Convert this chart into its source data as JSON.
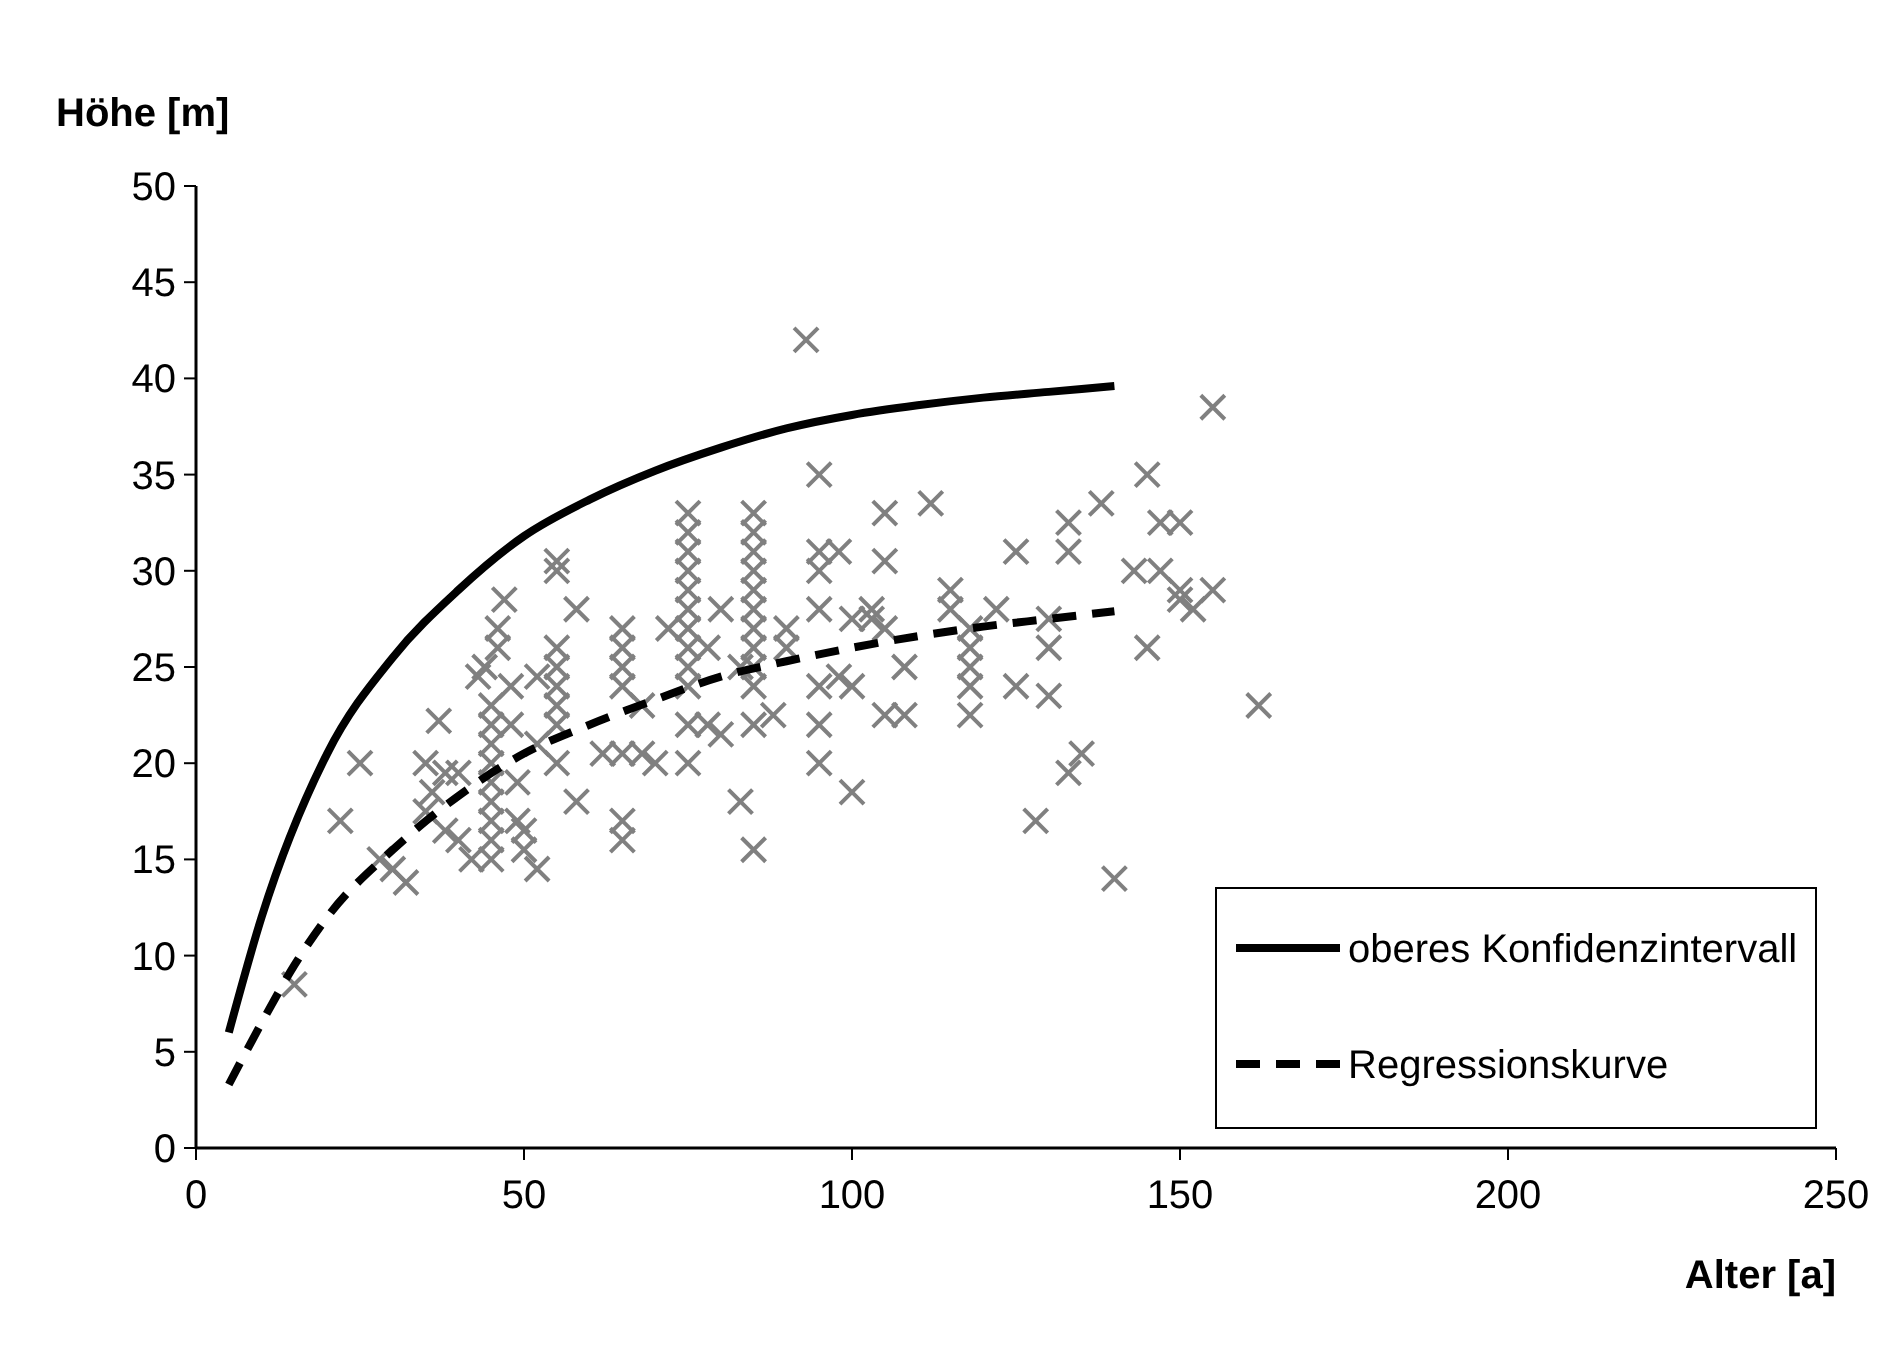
{
  "chart_data": {
    "type": "scatter",
    "xlabel": "Alter [a]",
    "ylabel": "Höhe [m]",
    "xlim": [
      0,
      250
    ],
    "xticks": [
      0,
      50,
      100,
      150,
      200,
      250
    ],
    "ylim": [
      0,
      50
    ],
    "yticks": [
      0,
      5,
      10,
      15,
      20,
      25,
      30,
      35,
      40,
      45,
      50
    ],
    "grid": false,
    "legend": "bottom right",
    "series": [
      {
        "color": "#808080",
        "marker": "cross",
        "x": [
          15,
          22,
          25,
          28,
          30,
          32,
          35,
          35,
          36,
          37,
          38,
          38,
          40,
          40,
          42,
          43,
          44,
          45,
          45,
          45,
          45,
          45,
          45,
          45,
          45,
          45,
          46,
          46,
          47,
          48,
          48,
          49,
          49,
          50,
          50,
          52,
          52,
          52,
          55,
          55,
          55,
          55,
          55,
          55,
          55,
          55,
          58,
          58,
          62,
          65,
          65,
          65,
          65,
          65,
          65,
          65,
          68,
          68,
          70,
          72,
          75,
          75,
          75,
          75,
          75,
          75,
          75,
          75,
          75,
          75,
          75,
          75,
          78,
          78,
          80,
          80,
          83,
          83,
          85,
          85,
          85,
          85,
          85,
          85,
          85,
          85,
          85,
          85,
          85,
          85,
          88,
          90,
          90,
          93,
          95,
          95,
          95,
          95,
          95,
          95,
          95,
          98,
          98,
          100,
          100,
          100,
          103,
          103,
          105,
          105,
          105,
          105,
          108,
          108,
          112,
          115,
          115,
          118,
          118,
          118,
          118,
          118,
          122,
          125,
          125,
          128,
          130,
          130,
          130,
          133,
          133,
          133,
          135,
          138,
          140,
          143,
          145,
          145,
          147,
          147,
          150,
          150,
          150,
          152,
          155,
          155,
          162
        ],
        "values": [
          8.5,
          17,
          20,
          15,
          14.5,
          13.8,
          20,
          17.5,
          18.5,
          22.2,
          19.5,
          16.5,
          19.5,
          16,
          15,
          24.5,
          25,
          15,
          16,
          17,
          18,
          19,
          20,
          21,
          22,
          23,
          26,
          27,
          28.5,
          24,
          22,
          19,
          17,
          15.5,
          16.5,
          14.5,
          24.5,
          21,
          20,
          22,
          24,
          25,
          26,
          30,
          30.5,
          23,
          28,
          18,
          20.5,
          24,
          25,
          26,
          27,
          16,
          17,
          20.5,
          23,
          20.5,
          20,
          27,
          22,
          24,
          25,
          26,
          27,
          28,
          29,
          30,
          31,
          32,
          33,
          20,
          26,
          22,
          21.5,
          28,
          18,
          25,
          24,
          25,
          26,
          27,
          28,
          29,
          30,
          31,
          32,
          33,
          15.5,
          22,
          22.5,
          27,
          26,
          42,
          35,
          31,
          30,
          28,
          20,
          22,
          24,
          31,
          24.5,
          18.5,
          27.5,
          24,
          28,
          27.5,
          33,
          30.5,
          27,
          22.5,
          25,
          22.5,
          33.5,
          29,
          28,
          22.5,
          24,
          25,
          26,
          27,
          28,
          31,
          24,
          17,
          27.5,
          26,
          23.5,
          32.5,
          31,
          19.5,
          20.5,
          33.5,
          14,
          30,
          35,
          26,
          32.5,
          30,
          32.5,
          29,
          28.5,
          28,
          38.5,
          29,
          23
        ]
      },
      {
        "type": "line",
        "name": "oberes Konfidenzintervall",
        "color": "#000000",
        "line_style": "solid",
        "x": [
          5,
          10,
          20,
          30,
          40,
          50,
          60,
          70,
          80,
          90,
          100,
          110,
          120,
          130,
          140
        ],
        "values": [
          6,
          12,
          20.5,
          25.5,
          29,
          31.8,
          33.7,
          35.2,
          36.4,
          37.4,
          38.1,
          38.6,
          39,
          39.3,
          39.6
        ]
      },
      {
        "type": "line",
        "name": "Regressionskurve",
        "color": "#000000",
        "line_style": "dashed",
        "x": [
          5,
          10,
          15,
          20,
          30,
          40,
          50,
          60,
          70,
          80,
          90,
          100,
          110,
          120,
          130,
          140
        ],
        "values": [
          3.3,
          6.5,
          9.5,
          12,
          15.5,
          18.3,
          20.5,
          22,
          23.3,
          24.5,
          25.3,
          26,
          26.6,
          27.1,
          27.5,
          27.9
        ]
      }
    ]
  }
}
